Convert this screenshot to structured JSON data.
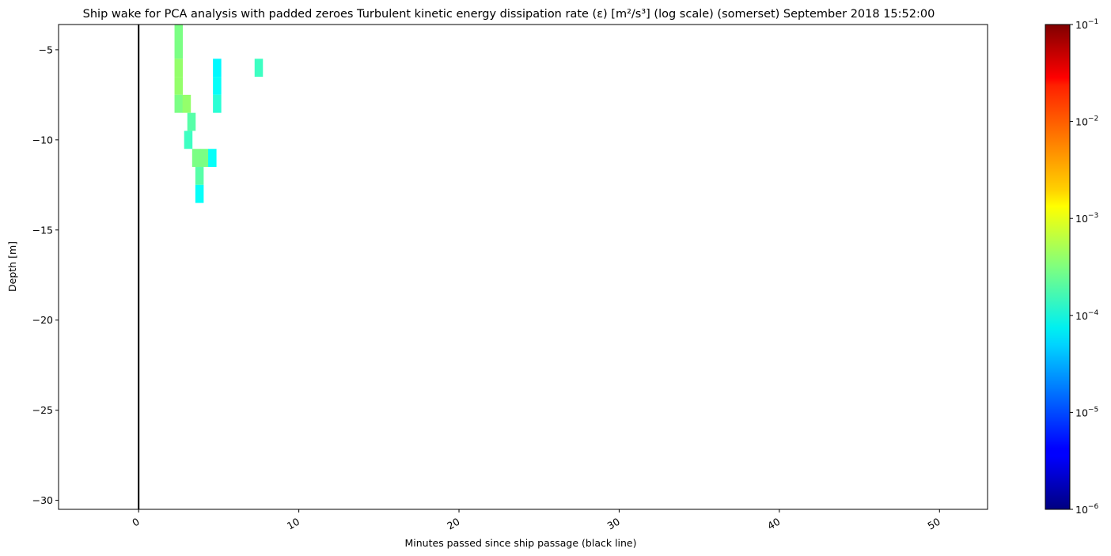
{
  "chart_data": {
    "type": "heatmap",
    "title": "Ship wake for PCA analysis with padded zeroes Turbulent kinetic energy dissipation rate (ε) [m²/s³] (log scale) (somerset) September 2018 15:52:00",
    "xlabel": "Minutes passed since ship passage (black line)",
    "ylabel": "Depth [m]",
    "xlim": [
      -5,
      53
    ],
    "ylim": [
      -30.5,
      -3.6
    ],
    "xticks": [
      0,
      10,
      20,
      30,
      40,
      50
    ],
    "xtick_labels": [
      "0",
      "10",
      "20",
      "30",
      "40",
      "50"
    ],
    "yticks": [
      -5,
      -10,
      -15,
      -20,
      -25,
      -30
    ],
    "ytick_labels": [
      "−5",
      "−10",
      "−15",
      "−20",
      "−25",
      "−30"
    ],
    "ship_passage_x": 0,
    "colorbar": {
      "scale": "log",
      "min": 1e-06,
      "max": 0.1,
      "colormap": "jet",
      "ticks": [
        1e-06,
        1e-05,
        0.0001,
        0.001,
        0.01,
        0.1
      ],
      "tick_bases": [
        "10",
        "10",
        "10",
        "10",
        "10",
        "10"
      ],
      "tick_exponents": [
        "−6",
        "−5",
        "−4",
        "−3",
        "−2",
        "−1"
      ]
    },
    "cells": [
      {
        "x": 2.5,
        "depth": -4,
        "value": 0.0003
      },
      {
        "x": 2.5,
        "depth": -5,
        "value": 0.0003
      },
      {
        "x": 2.5,
        "depth": -6,
        "value": 0.0004
      },
      {
        "x": 2.5,
        "depth": -7,
        "value": 0.0004
      },
      {
        "x": 2.5,
        "depth": -8,
        "value": 0.0003
      },
      {
        "x": 3.0,
        "depth": -8,
        "value": 0.0004
      },
      {
        "x": 3.3,
        "depth": -9,
        "value": 0.0002
      },
      {
        "x": 3.1,
        "depth": -10,
        "value": 0.00015
      },
      {
        "x": 3.6,
        "depth": -11,
        "value": 0.0003
      },
      {
        "x": 4.1,
        "depth": -11,
        "value": 0.0003
      },
      {
        "x": 4.6,
        "depth": -11,
        "value": 8e-05
      },
      {
        "x": 3.8,
        "depth": -12,
        "value": 0.0002
      },
      {
        "x": 3.8,
        "depth": -13,
        "value": 8e-05
      },
      {
        "x": 4.9,
        "depth": -6,
        "value": 7e-05
      },
      {
        "x": 4.9,
        "depth": -7,
        "value": 8e-05
      },
      {
        "x": 4.9,
        "depth": -8,
        "value": 0.00012
      },
      {
        "x": 7.5,
        "depth": -6,
        "value": 0.00015
      }
    ]
  }
}
